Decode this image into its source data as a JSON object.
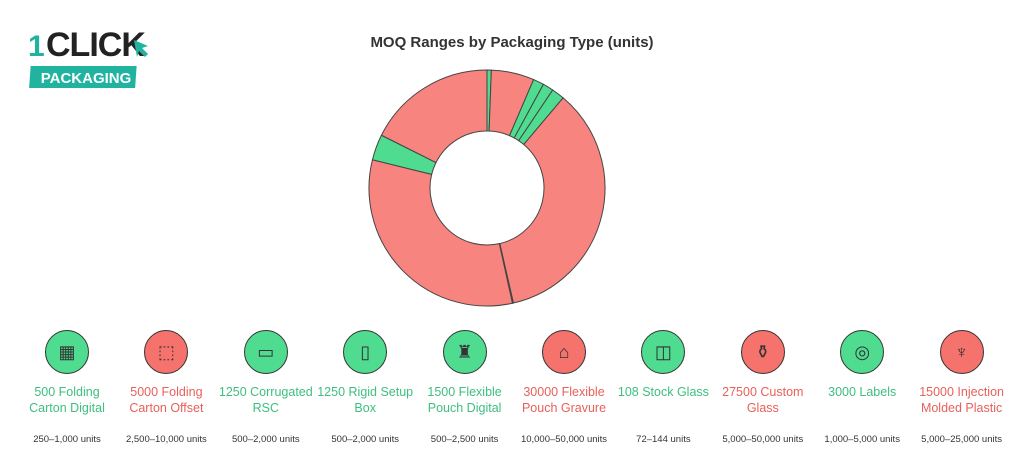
{
  "logo": {
    "text_one": "ONE",
    "text_click": "CLICK",
    "text_packaging": "PACKAGING"
  },
  "colors": {
    "low": "#4fdc90",
    "high": "#f6726c",
    "low_text": "#3dbf7f",
    "high_text": "#e8605a",
    "logo_teal": "#1fb3a0"
  },
  "chart_data": {
    "type": "pie",
    "donut": true,
    "title": "MOQ Ranges by Packaging Type (units)",
    "categories": [
      "500 Folding Carton Digital",
      "5000 Folding Carton Offset",
      "1250 Corrugated RSC",
      "1250 Rigid Setup Box",
      "1500 Flexible Pouch Digital",
      "30000 Flexible Pouch Gravure",
      "108 Stock Glass",
      "27500 Custom Glass",
      "3000 Labels",
      "15000 Injection Molded Plastic"
    ],
    "values": [
      500,
      5000,
      1250,
      1250,
      1500,
      30000,
      108,
      27500,
      3000,
      15000
    ],
    "ranges": [
      "250–1,000 units",
      "2,500–10,000 units",
      "500–2,000 units",
      "500–2,000 units",
      "500–2,500 units",
      "10,000–50,000 units",
      "72–144 units",
      "5,000–50,000 units",
      "1,000–5,000 units",
      "5,000–25,000 units"
    ],
    "level": [
      "low",
      "high",
      "low",
      "low",
      "low",
      "high",
      "low",
      "high",
      "low",
      "high"
    ],
    "icons": [
      "robot-carton-icon",
      "box-dimensions-icon",
      "cardboard-box-icon",
      "rigid-box-icon",
      "pouch-bag-icon",
      "gravure-press-icon",
      "glass-jar-icon",
      "vase-icon",
      "label-roll-icon",
      "molded-plastic-icon"
    ]
  }
}
